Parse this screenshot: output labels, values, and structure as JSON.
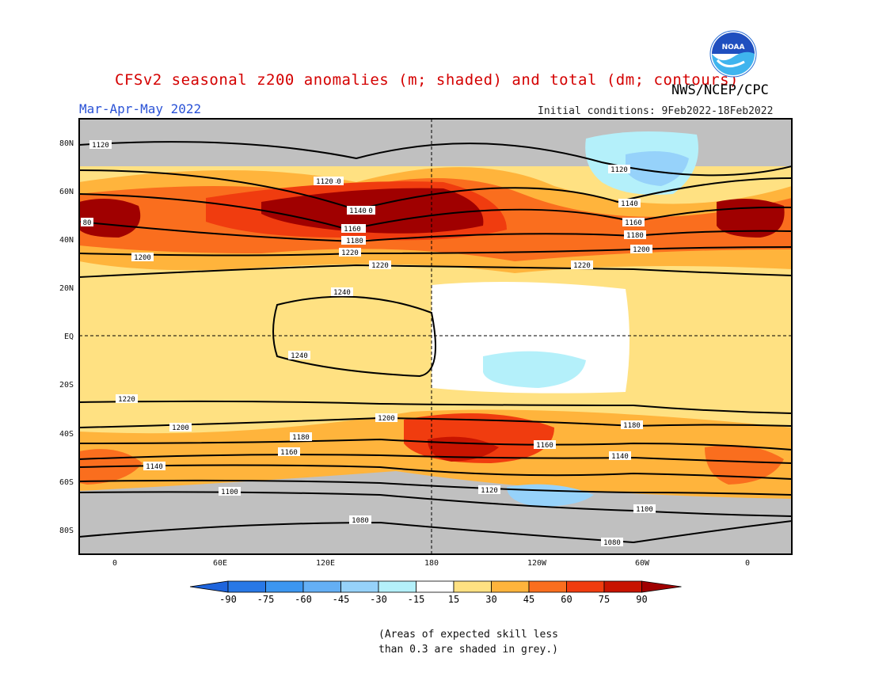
{
  "header": {
    "title": "CFSv2 seasonal z200 anomalies (m; shaded) and total (dm; contours)",
    "organization": "NWS/NCEP/CPC",
    "season": "Mar-Apr-May 2022",
    "initial_conditions": "Initial conditions: 9Feb2022-18Feb2022",
    "logo_text": "NOAA"
  },
  "map": {
    "lat_labels": [
      "80N",
      "60N",
      "40N",
      "20N",
      "EQ",
      "20S",
      "40S",
      "60S",
      "80S"
    ],
    "lon_labels": [
      "0",
      "60E",
      "120E",
      "180",
      "120W",
      "60W",
      "0"
    ],
    "contour_labels": [
      "1120",
      "1140",
      "1160",
      "1180",
      "1200",
      "1220",
      "1240",
      "1240",
      "1220",
      "1200",
      "1180",
      "1160",
      "1140",
      "1120",
      "1100",
      "1080",
      "1080",
      "1100",
      "1120",
      "1140",
      "1160",
      "1180",
      "1200",
      "1220",
      "1200",
      "1180",
      "1160",
      "1140",
      "1120",
      "1140",
      "1160",
      "1180",
      "1200",
      "1220",
      "80"
    ]
  },
  "colorbar": {
    "ticks": [
      "-90",
      "-75",
      "-60",
      "-45",
      "-30",
      "-15",
      "15",
      "30",
      "45",
      "60",
      "75",
      "90"
    ],
    "colors": [
      "#1e64dc",
      "#2878e6",
      "#3c96f0",
      "#64aff5",
      "#96d2fa",
      "#b4f0fa",
      "#ffffff",
      "#ffe182",
      "#ffb43c",
      "#fa6e1e",
      "#f03c0f",
      "#c81400",
      "#a00000"
    ]
  },
  "footnote": {
    "line1": "(Areas of expected skill less",
    "line2": "than 0.3 are shaded in grey.)"
  },
  "colors": {
    "title": "#d40000",
    "season": "#2a52d6",
    "grey_skill": "#c0c0c0"
  }
}
